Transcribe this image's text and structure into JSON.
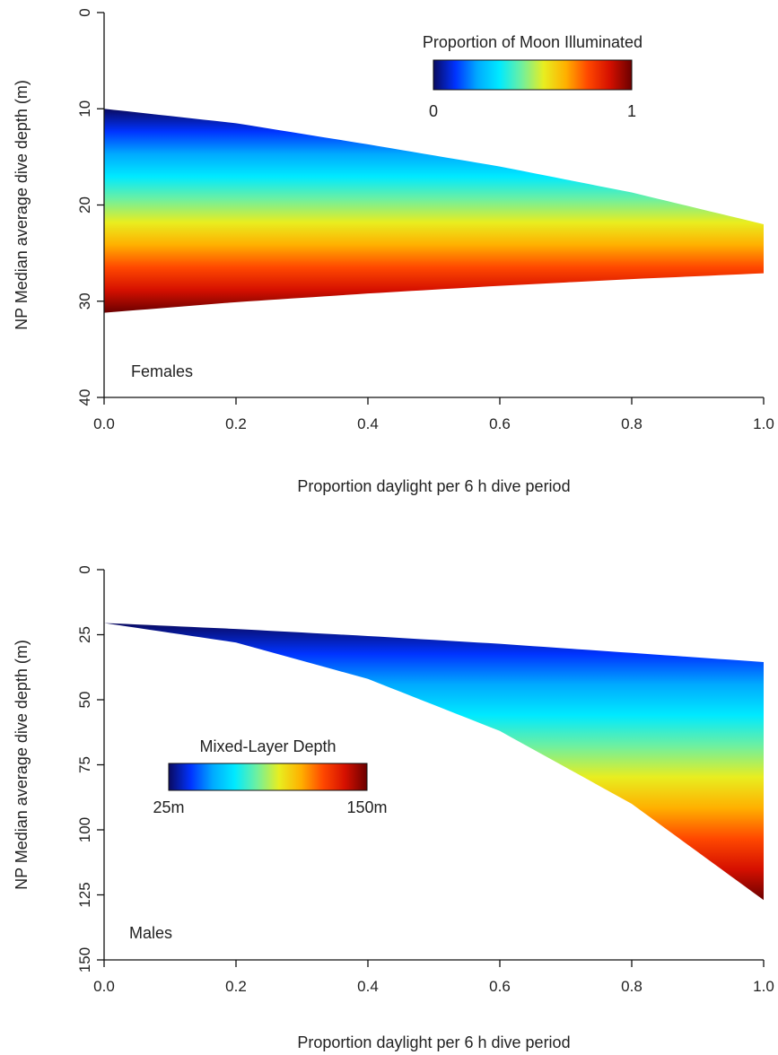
{
  "chart_data": [
    {
      "type": "area",
      "panel_label": "Females",
      "xlabel": "Proportion daylight per 6 h dive period",
      "ylabel": "NP Median average dive depth (m)",
      "xlim": [
        0,
        1
      ],
      "ylim": [
        0,
        40
      ],
      "y_reversed": true,
      "x_ticks": [
        "0.0",
        "0.2",
        "0.4",
        "0.6",
        "0.8",
        "1.0"
      ],
      "y_ticks": [
        "0",
        "10",
        "20",
        "30",
        "40"
      ],
      "grid": false,
      "colorbar": {
        "title": "Proportion of Moon Illuminated",
        "min_label": "0",
        "max_label": "1",
        "colors": [
          "#0a0a60",
          "#0033ff",
          "#00aaff",
          "#00eaff",
          "#6ef0a0",
          "#e8ee20",
          "#ffb000",
          "#ff4800",
          "#d51000",
          "#6b0000"
        ],
        "placement": "top-right"
      },
      "series": [
        {
          "name": "0",
          "x": [
            0,
            0.2,
            0.4,
            0.6,
            0.8,
            1.0
          ],
          "y": [
            10.0,
            11.5,
            13.7,
            16.0,
            18.7,
            22.0
          ]
        },
        {
          "name": "1",
          "x": [
            0,
            0.2,
            0.4,
            0.6,
            0.8,
            1.0
          ],
          "y": [
            31.2,
            30.1,
            29.2,
            28.4,
            27.7,
            27.1
          ]
        }
      ]
    },
    {
      "type": "area",
      "panel_label": "Males",
      "xlabel": "Proportion daylight per 6 h dive period",
      "ylabel": "NP Median average dive depth (m)",
      "xlim": [
        0,
        1
      ],
      "ylim": [
        0,
        150
      ],
      "y_reversed": true,
      "x_ticks": [
        "0.0",
        "0.2",
        "0.4",
        "0.6",
        "0.8",
        "1.0"
      ],
      "y_ticks": [
        "0",
        "25",
        "50",
        "75",
        "100",
        "125",
        "150"
      ],
      "grid": false,
      "colorbar": {
        "title": "Mixed-Layer Depth",
        "min_label": "25m",
        "max_label": "150m",
        "colors": [
          "#0a0a60",
          "#0033ff",
          "#00aaff",
          "#00eaff",
          "#6ef0a0",
          "#e8ee20",
          "#ffb000",
          "#ff4800",
          "#d51000",
          "#6b0000"
        ],
        "placement": "center-left"
      },
      "series": [
        {
          "name": "25m",
          "x": [
            0,
            0.2,
            0.4,
            0.6,
            0.8,
            1.0
          ],
          "y": [
            20.5,
            22.8,
            25.5,
            28.5,
            32.0,
            35.5
          ]
        },
        {
          "name": "150m",
          "x": [
            0,
            0.2,
            0.4,
            0.6,
            0.8,
            1.0
          ],
          "y": [
            20.5,
            28.0,
            42.0,
            62.0,
            90.0,
            127.0
          ]
        }
      ]
    }
  ]
}
